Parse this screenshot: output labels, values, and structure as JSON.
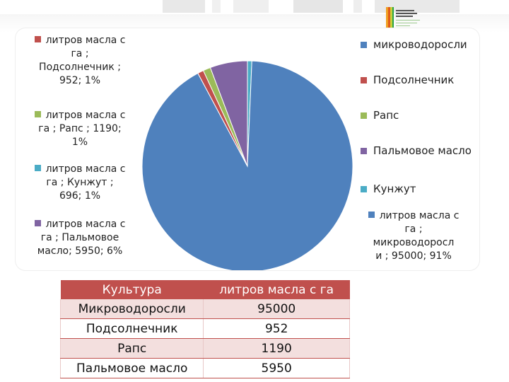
{
  "colors": {
    "microalgae": "#4f81bd",
    "sunflower": "#c0504d",
    "rapeseed": "#9bbb59",
    "palm": "#8064a2",
    "sesame": "#4bacc6",
    "table_header": "#c0504d",
    "table_row_alt": "#f3dfde"
  },
  "chart_data": {
    "type": "pie",
    "categories": [
      "микроводоросли",
      "Подсолнечник",
      "Рапс",
      "Пальмовое масло",
      "Кунжут"
    ],
    "values": [
      95000,
      952,
      1190,
      5950,
      696
    ],
    "percents": [
      91,
      1,
      1,
      6,
      1
    ],
    "series": [
      {
        "name": "литров масла с га",
        "values": [
          95000,
          952,
          1190,
          5950,
          696
        ]
      }
    ],
    "legend_position": "right",
    "data_labels": [
      "литров масла с га ; микроводоросли ; 95000; 91%",
      "литров масла с га ; Подсолнечник ; 952; 1%",
      "литров масла с га ; Рапс ; 1190; 1%",
      "литров масла с га ; Пальмовое масло; 5950; 6%",
      "литров масла с га ; Кунжут ; 696; 1%"
    ]
  },
  "labels": {
    "sunflower": [
      "литров масла с",
      "га ;",
      "Подсолнечник ;",
      "952; 1%"
    ],
    "rapeseed": [
      "литров масла с",
      "га ; Рапс ; 1190;",
      "1%"
    ],
    "sesame": [
      "литров масла с",
      "га ; Кунжут ;",
      "696; 1%"
    ],
    "palm": [
      "литров масла с",
      "га ; Пальмовое",
      "масло; 5950; 6%"
    ],
    "microalgae": [
      "литров масла с",
      "га ;",
      "микроводоросл",
      "и ; 95000; 91%"
    ]
  },
  "legend": [
    {
      "label": "микроводоросли"
    },
    {
      "label": "Подсолнечник"
    },
    {
      "label": "Рапс"
    },
    {
      "label": "Пальмовое масло"
    },
    {
      "label": "Кунжут"
    }
  ],
  "table": {
    "headers": [
      "Культура",
      "литров масла с га"
    ],
    "rows": [
      [
        "Микроводоросли",
        "95000"
      ],
      [
        "Подсолнечник",
        "952"
      ],
      [
        "Рапс",
        "1190"
      ],
      [
        "Пальмовое масло",
        "5950"
      ]
    ]
  }
}
